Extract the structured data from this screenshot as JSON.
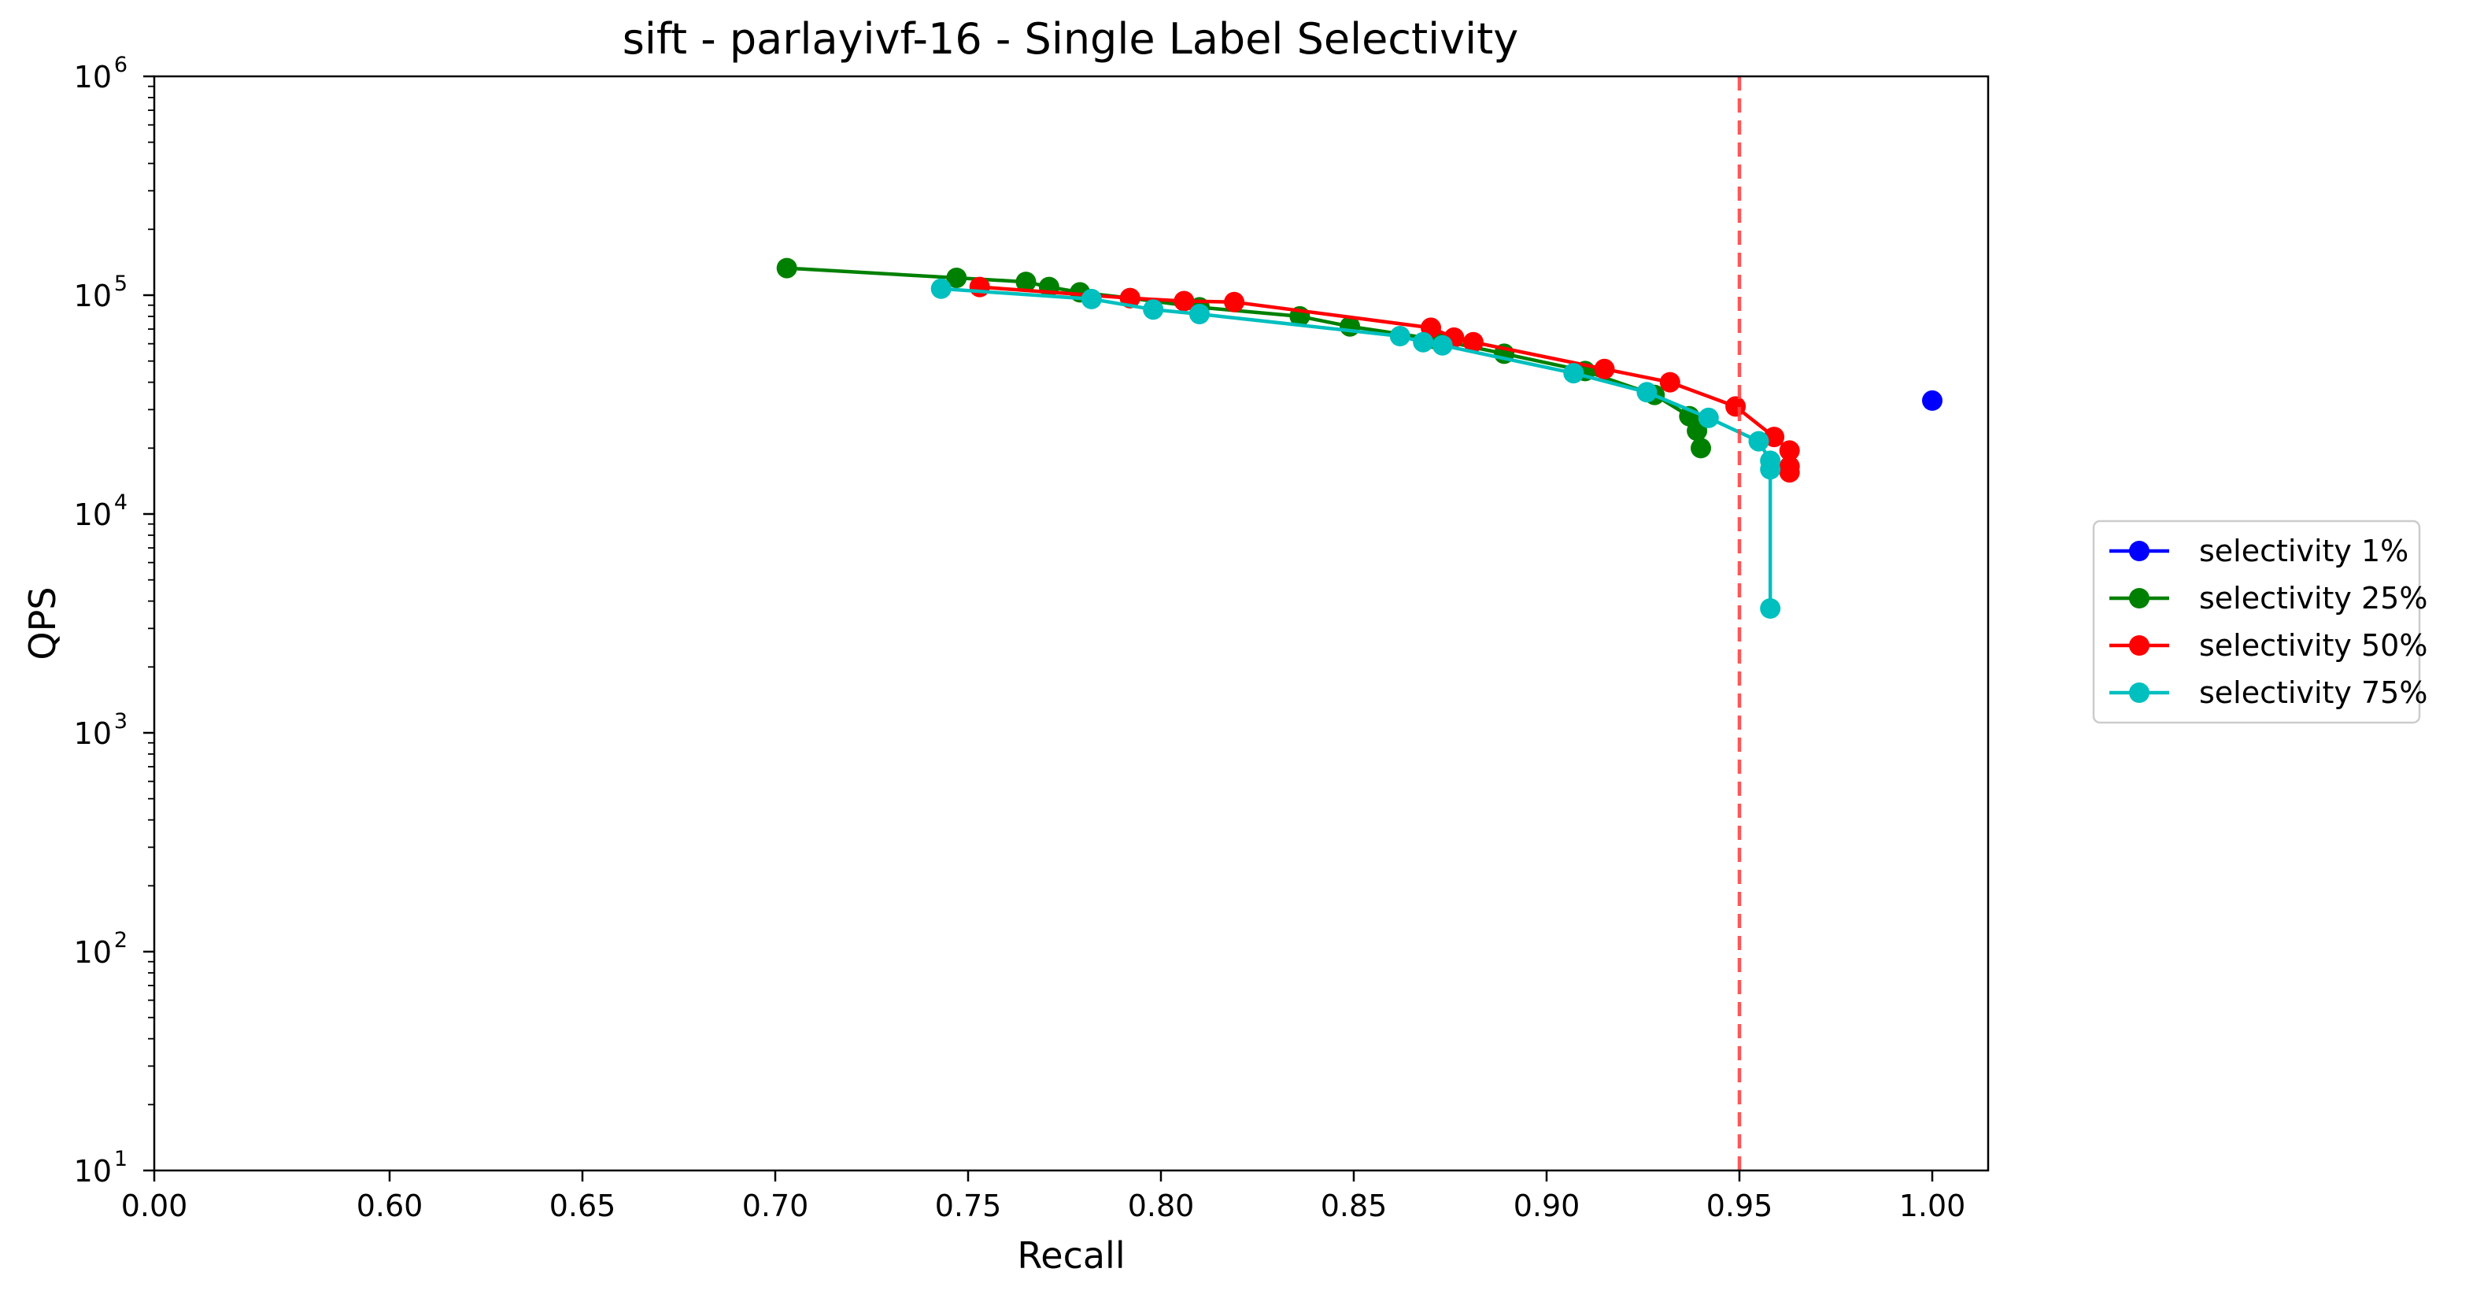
{
  "chart_data": {
    "type": "line",
    "title": "sift - parlayivf-16 - Single Label Selectivity",
    "xlabel": "Recall",
    "ylabel": "QPS",
    "y_scale": "log",
    "ylim": [
      10,
      1000000
    ],
    "x_tick_labels": [
      "0.00",
      "0.60",
      "0.65",
      "0.70",
      "0.75",
      "0.80",
      "0.85",
      "0.90",
      "0.95",
      "1.00"
    ],
    "y_tick_labels": [
      {
        "base": "10",
        "exp": "1"
      },
      {
        "base": "10",
        "exp": "2"
      },
      {
        "base": "10",
        "exp": "3"
      },
      {
        "base": "10",
        "exp": "4"
      },
      {
        "base": "10",
        "exp": "5"
      },
      {
        "base": "10",
        "exp": "6"
      }
    ],
    "reference_line": {
      "x": 0.95,
      "color": "#ff4444",
      "style": "dashed"
    },
    "grid": false,
    "legend_position": "outside-right",
    "series": [
      {
        "name": "selectivity 1%",
        "color": "#0000ff",
        "points": [
          [
            1.0,
            33000
          ]
        ]
      },
      {
        "name": "selectivity 25%",
        "color": "#008000",
        "points": [
          [
            0.703,
            133000
          ],
          [
            0.747,
            120000
          ],
          [
            0.765,
            115000
          ],
          [
            0.771,
            109000
          ],
          [
            0.779,
            103000
          ],
          [
            0.792,
            97000
          ],
          [
            0.81,
            88000
          ],
          [
            0.836,
            80000
          ],
          [
            0.849,
            72000
          ],
          [
            0.871,
            63000
          ],
          [
            0.889,
            54000
          ],
          [
            0.91,
            45000
          ],
          [
            0.928,
            35000
          ],
          [
            0.937,
            28000
          ],
          [
            0.939,
            24000
          ],
          [
            0.94,
            20000
          ]
        ]
      },
      {
        "name": "selectivity 50%",
        "color": "#ff0000",
        "points": [
          [
            0.753,
            109000
          ],
          [
            0.792,
            97000
          ],
          [
            0.806,
            94000
          ],
          [
            0.819,
            93000
          ],
          [
            0.87,
            71000
          ],
          [
            0.876,
            64000
          ],
          [
            0.881,
            61000
          ],
          [
            0.915,
            46000
          ],
          [
            0.932,
            40000
          ],
          [
            0.949,
            31000
          ],
          [
            0.959,
            22500
          ],
          [
            0.963,
            19500
          ],
          [
            0.963,
            16500
          ],
          [
            0.963,
            15500
          ]
        ]
      },
      {
        "name": "selectivity 75%",
        "color": "#00bfbf",
        "points": [
          [
            0.743,
            107000
          ],
          [
            0.782,
            96000
          ],
          [
            0.798,
            86000
          ],
          [
            0.81,
            82000
          ],
          [
            0.862,
            65000
          ],
          [
            0.868,
            61000
          ],
          [
            0.873,
            59000
          ],
          [
            0.907,
            44000
          ],
          [
            0.926,
            36000
          ],
          [
            0.942,
            27500
          ],
          [
            0.955,
            21500
          ],
          [
            0.958,
            17500
          ],
          [
            0.958,
            16000
          ],
          [
            0.958,
            3700
          ]
        ]
      }
    ]
  }
}
